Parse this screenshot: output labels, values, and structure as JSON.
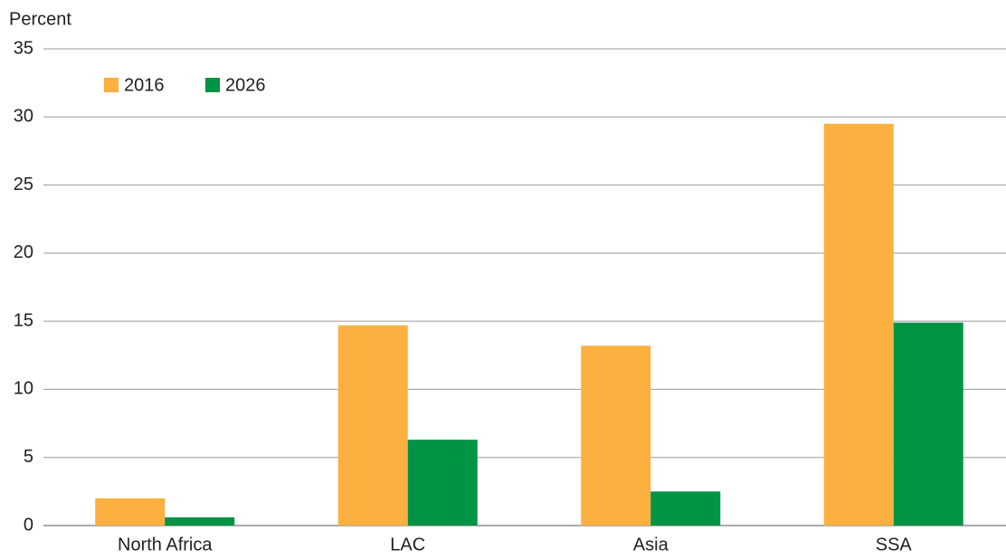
{
  "chart_data": {
    "type": "bar",
    "y_label": "Percent",
    "categories": [
      "North Africa",
      "LAC",
      "Asia",
      "SSA"
    ],
    "series": [
      {
        "name": "2016",
        "color": "#fbb040",
        "values": [
          2.0,
          14.7,
          13.2,
          29.5
        ]
      },
      {
        "name": "2026",
        "color": "#009444",
        "values": [
          0.6,
          6.3,
          2.5,
          14.9
        ]
      }
    ],
    "ylim": [
      0,
      35
    ],
    "yticks": [
      0,
      5,
      10,
      15,
      20,
      25,
      30,
      35
    ],
    "grid": true,
    "legend": "top-left"
  }
}
